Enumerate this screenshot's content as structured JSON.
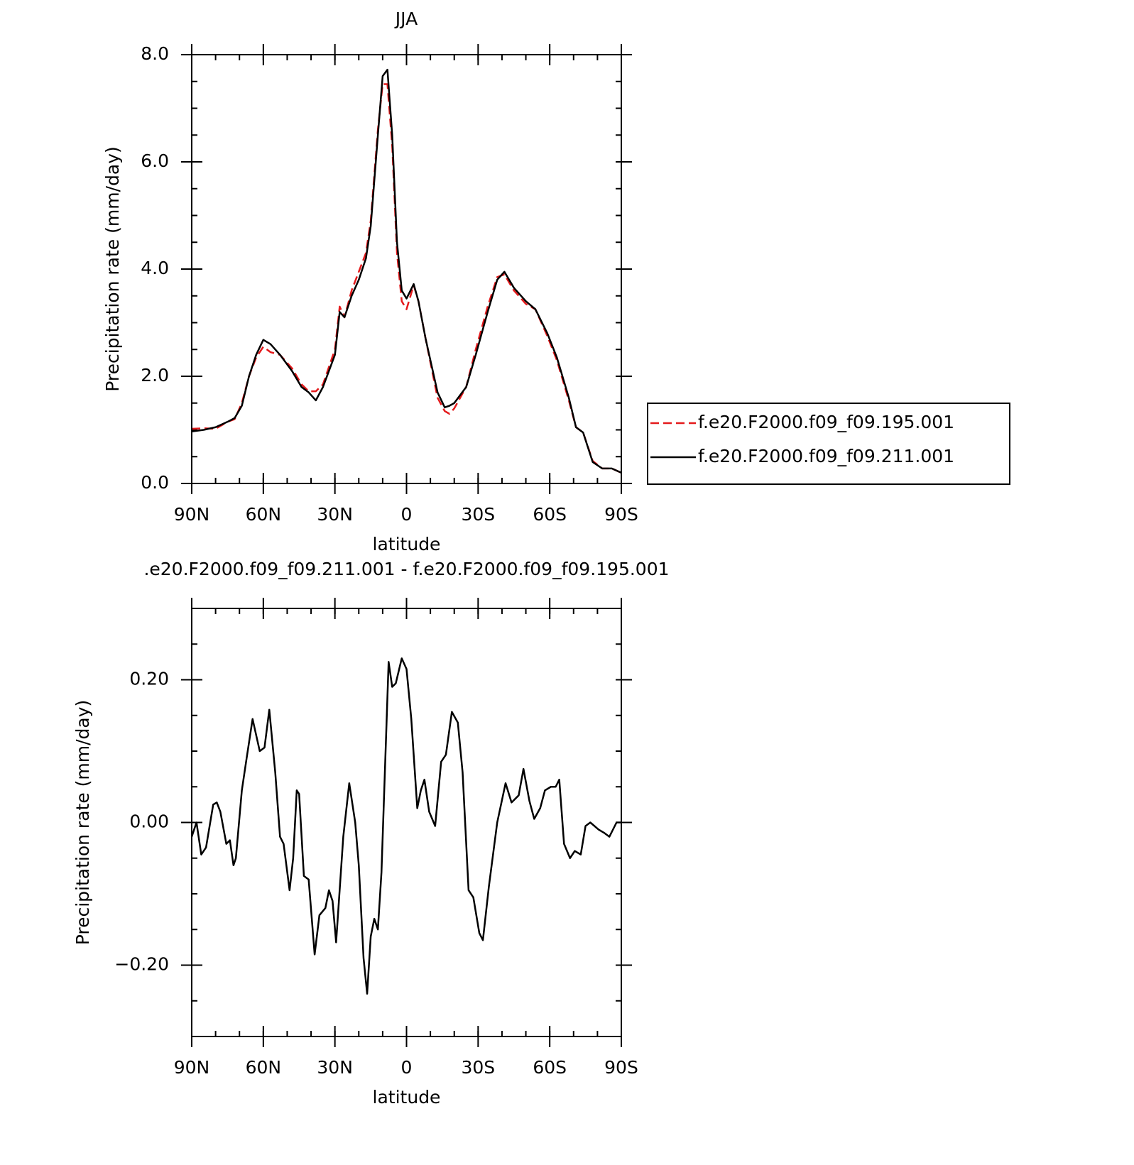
{
  "chart_data": [
    {
      "type": "line",
      "title": "JJA",
      "xlabel": "latitude",
      "ylabel": "Precipitation rate (mm/day)",
      "x": [
        90,
        85,
        80,
        75,
        72,
        69,
        66,
        63,
        60,
        57,
        53,
        48,
        44,
        41,
        38,
        35,
        30,
        28,
        26,
        23,
        20,
        17,
        15,
        12,
        10,
        8,
        6,
        4,
        2,
        0,
        -3,
        -5,
        -8,
        -13,
        -16,
        -18,
        -20,
        -25,
        -29,
        -34,
        -38,
        -41,
        -45,
        -50,
        -54,
        -59,
        -63,
        -68,
        -71,
        -74,
        -78,
        -82,
        -86,
        -90
      ],
      "series": [
        {
          "name": "f.e20.F2000.f09_f09.195.001",
          "color": "#e41a1c",
          "dashed": true,
          "values": [
            1.02,
            1.03,
            1.02,
            1.15,
            1.2,
            1.5,
            2.0,
            2.35,
            2.55,
            2.45,
            2.4,
            2.15,
            1.85,
            1.72,
            1.72,
            1.85,
            2.5,
            3.3,
            3.1,
            3.6,
            3.95,
            4.3,
            4.9,
            6.6,
            7.45,
            7.45,
            6.3,
            4.3,
            3.4,
            3.25,
            3.7,
            3.4,
            2.7,
            1.6,
            1.35,
            1.3,
            1.4,
            1.8,
            2.5,
            3.3,
            3.85,
            3.9,
            3.6,
            3.35,
            3.25,
            2.75,
            2.3,
            1.55,
            1.05,
            0.95,
            0.42,
            0.28,
            0.28,
            0.2
          ]
        },
        {
          "name": "f.e20.F2000.f09_f09.211.001",
          "color": "#000000",
          "dashed": false,
          "values": [
            0.97,
            1.0,
            1.05,
            1.15,
            1.22,
            1.45,
            2.0,
            2.4,
            2.68,
            2.6,
            2.4,
            2.1,
            1.8,
            1.7,
            1.55,
            1.8,
            2.4,
            3.2,
            3.1,
            3.5,
            3.8,
            4.2,
            4.8,
            6.5,
            7.6,
            7.72,
            6.5,
            4.5,
            3.6,
            3.45,
            3.72,
            3.4,
            2.7,
            1.7,
            1.42,
            1.45,
            1.5,
            1.8,
            2.4,
            3.2,
            3.8,
            3.95,
            3.65,
            3.4,
            3.25,
            2.8,
            2.35,
            1.6,
            1.05,
            0.95,
            0.4,
            0.28,
            0.28,
            0.2
          ]
        }
      ],
      "xlim": [
        90,
        -90
      ],
      "xticks": [
        {
          "value": 90,
          "label": "90N"
        },
        {
          "value": 60,
          "label": "60N"
        },
        {
          "value": 30,
          "label": "30N"
        },
        0,
        {
          "value": -30,
          "label": "30S"
        },
        {
          "value": -60,
          "label": "60S"
        },
        {
          "value": -90,
          "label": "90S"
        }
      ],
      "ylim": [
        0,
        8
      ],
      "yticks": [
        {
          "value": 0,
          "label": "0.0"
        },
        {
          "value": 2,
          "label": "2.0"
        },
        {
          "value": 4,
          "label": "4.0"
        },
        {
          "value": 6,
          "label": "6.0"
        },
        {
          "value": 8,
          "label": "8.0"
        }
      ],
      "legend": "right"
    },
    {
      "type": "line",
      "title": ".e20.F2000.f09_f09.211.001 - f.e20.F2000.f09_f09.195.001",
      "xlabel": "latitude",
      "ylabel": "Precipitation rate (mm/day)",
      "x": [
        90,
        88,
        86,
        84,
        81,
        79.5,
        78,
        75.5,
        74,
        72.5,
        71.5,
        69,
        67,
        64.5,
        61.5,
        59.5,
        57.5,
        55,
        53,
        51.5,
        49,
        47.5,
        46,
        45,
        43,
        41,
        38.5,
        36.5,
        34,
        32.5,
        31,
        29.5,
        26.5,
        24,
        21.5,
        20,
        18,
        16.5,
        15,
        13.5,
        12,
        10.5,
        7.5,
        6,
        4.5,
        2,
        0,
        -2,
        -4.5,
        -6,
        -7.5,
        -9.5,
        -12,
        -14.5,
        -16.5,
        -19,
        -21.5,
        -23.5,
        -26,
        -28,
        -30.5,
        -32,
        -34.5,
        -38,
        -41.5,
        -44,
        -47,
        -49,
        -51.5,
        -53.5,
        -56,
        -58,
        -60.5,
        -62.5,
        -64,
        -66,
        -68.5,
        -70.5,
        -73,
        -75,
        -77,
        -80.5,
        -83,
        -85,
        -88,
        -90
      ],
      "series": [
        {
          "color": "#000000",
          "dashed": false,
          "values": [
            -0.02,
            0.0,
            -0.045,
            -0.035,
            0.025,
            0.028,
            0.015,
            -0.03,
            -0.025,
            -0.06,
            -0.05,
            0.045,
            0.09,
            0.145,
            0.1,
            0.105,
            0.158,
            0.07,
            -0.02,
            -0.03,
            -0.095,
            -0.05,
            0.045,
            0.04,
            -0.075,
            -0.08,
            -0.185,
            -0.13,
            -0.12,
            -0.095,
            -0.11,
            -0.168,
            -0.02,
            0.055,
            0.0,
            -0.06,
            -0.19,
            -0.24,
            -0.16,
            -0.135,
            -0.15,
            -0.07,
            0.225,
            0.19,
            0.195,
            0.23,
            0.215,
            0.145,
            0.02,
            0.045,
            0.06,
            0.015,
            -0.005,
            0.085,
            0.095,
            0.155,
            0.14,
            0.07,
            -0.095,
            -0.105,
            -0.155,
            -0.165,
            -0.09,
            0.0,
            0.055,
            0.028,
            0.038,
            0.075,
            0.03,
            0.005,
            0.02,
            0.045,
            0.05,
            0.05,
            0.06,
            -0.03,
            -0.05,
            -0.04,
            -0.045,
            -0.005,
            0.0,
            -0.01,
            -0.015,
            -0.02,
            0.0,
            0.0
          ]
        }
      ],
      "xlim": [
        90,
        -90
      ],
      "xticks": [
        {
          "value": 90,
          "label": "90N"
        },
        {
          "value": 60,
          "label": "60N"
        },
        {
          "value": 30,
          "label": "30N"
        },
        0,
        {
          "value": -30,
          "label": "30S"
        },
        {
          "value": -60,
          "label": "60S"
        },
        {
          "value": -90,
          "label": "90S"
        }
      ],
      "ylim": [
        -0.3,
        0.3
      ],
      "yticks": [
        {
          "value": -0.2,
          "label": "−0.20"
        },
        {
          "value": 0,
          "label": "0.00"
        },
        {
          "value": 0.2,
          "label": "0.20"
        }
      ]
    }
  ]
}
